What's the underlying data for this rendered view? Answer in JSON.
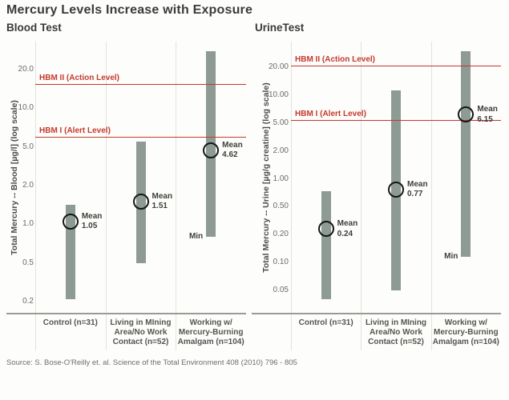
{
  "title": "Mercury Levels Increase with Exposure",
  "source": "Source: S. Bose-O'Reilly et. al. Science of the Total Environment 408 (2010) 796 - 805",
  "colors": {
    "reference_line": "#c5392c",
    "range_bar": "#8e9b94",
    "mean_marker": "#161616",
    "text": "#3b3b3b"
  },
  "chart_data": [
    {
      "type": "bar",
      "title": "Blood Test",
      "ylabel": "Total Mercury -- Blood [µg/l] (log scale)",
      "scale": "log",
      "ticks": [
        "20.0",
        "10.0",
        "5.0",
        "2.0",
        "1.0",
        "0.5",
        "0.2"
      ],
      "reference_lines": [
        {
          "label": "HBM II (Action Level)",
          "value": 15.5
        },
        {
          "label": "HBM I (Alert Level)",
          "value": 6.0
        }
      ],
      "categories": [
        [
          "Control (n=31)"
        ],
        [
          "Living in MIning",
          "Area/No Work",
          "Contact (n=52)"
        ],
        [
          "Working w/",
          "Mercury-Burning",
          "Amalgam (n=104)"
        ]
      ],
      "bars": [
        {
          "min": 0.21,
          "max": 1.42,
          "mean": 1.05,
          "mean_text": "Mean",
          "mean_value_text": "1.05"
        },
        {
          "min": 0.5,
          "max": 5.5,
          "mean": 1.51,
          "mean_text": "Mean",
          "mean_value_text": "1.51"
        },
        {
          "min": 0.8,
          "max": 28,
          "mean": 4.62,
          "mean_text": "Mean",
          "mean_value_text": "4.62",
          "min_label": "Min"
        }
      ]
    },
    {
      "type": "bar",
      "title": "UrineTest",
      "ylabel": "Total Mercury -- Urine [µg/g creatine] (log scale)",
      "scale": "log",
      "ticks": [
        "20.00",
        "10.00",
        "5.00",
        "2.00",
        "1.00",
        "0.50",
        "0.20",
        "0.10",
        "0.05"
      ],
      "reference_lines": [
        {
          "label": "HBM II (Action Level)",
          "value": 21
        },
        {
          "label": "HBM I (Alert Level)",
          "value": 5.4
        }
      ],
      "categories": [
        [
          "Control (n=31)"
        ],
        [
          "Living in MIning",
          "Area/No Work",
          "Contact (n=52)"
        ],
        [
          "Working w/",
          "Mercury-Burning",
          "Amalgam (n=104)"
        ]
      ],
      "bars": [
        {
          "min": 0.04,
          "max": 0.74,
          "mean": 0.24,
          "mean_text": "Mean",
          "mean_value_text": "0.24"
        },
        {
          "min": 0.05,
          "max": 11.2,
          "mean": 0.77,
          "mean_text": "Mean",
          "mean_value_text": "0.77"
        },
        {
          "min": 0.115,
          "max": 30,
          "mean": 6.15,
          "mean_text": "Mean",
          "mean_value_text": "6.15",
          "min_label": "Min"
        }
      ]
    }
  ]
}
